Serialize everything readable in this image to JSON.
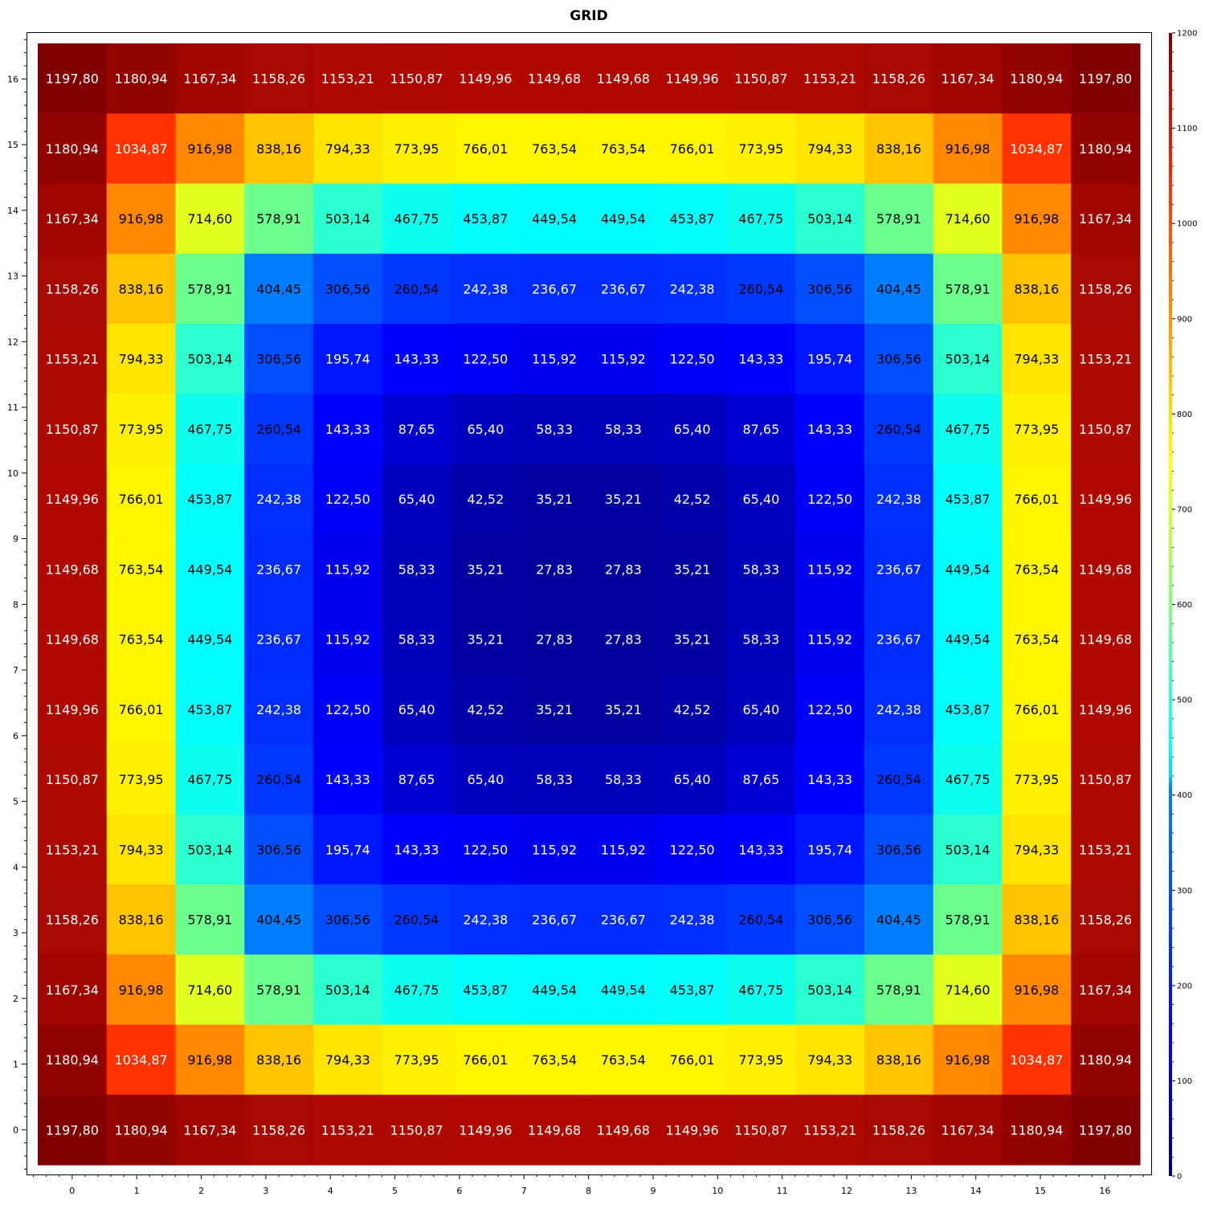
{
  "chart_data": {
    "type": "heatmap",
    "title": "GRID",
    "xlabel": "",
    "ylabel": "",
    "x": [
      0,
      1,
      2,
      3,
      4,
      5,
      6,
      7,
      8,
      9,
      10,
      11,
      12,
      13,
      14,
      15,
      16
    ],
    "y": [
      0,
      1,
      2,
      3,
      4,
      5,
      6,
      7,
      8,
      9,
      10,
      11,
      12,
      13,
      14,
      15,
      16
    ],
    "rows": [
      [
        "1197,80",
        "1180,94",
        "1167,34",
        "1158,26",
        "1153,21",
        "1150,87",
        "1149,96",
        "1149,68",
        "1149,68",
        "1149,96",
        "1150,87",
        "1153,21",
        "1158,26",
        "1167,34",
        "1180,94",
        "1197,80"
      ],
      [
        "1180,94",
        "1034,87",
        "916,98",
        "838,16",
        "794,33",
        "773,95",
        "766,01",
        "763,54",
        "763,54",
        "766,01",
        "773,95",
        "794,33",
        "838,16",
        "916,98",
        "1034,87",
        "1180,94"
      ],
      [
        "1167,34",
        "916,98",
        "714,60",
        "578,91",
        "503,14",
        "467,75",
        "453,87",
        "449,54",
        "449,54",
        "453,87",
        "467,75",
        "503,14",
        "578,91",
        "714,60",
        "916,98",
        "1167,34"
      ],
      [
        "1158,26",
        "838,16",
        "578,91",
        "404,45",
        "306,56",
        "260,54",
        "242,38",
        "236,67",
        "236,67",
        "242,38",
        "260,54",
        "306,56",
        "404,45",
        "578,91",
        "838,16",
        "1158,26"
      ],
      [
        "1153,21",
        "794,33",
        "503,14",
        "306,56",
        "195,74",
        "143,33",
        "122,50",
        "115,92",
        "115,92",
        "122,50",
        "143,33",
        "195,74",
        "306,56",
        "503,14",
        "794,33",
        "1153,21"
      ],
      [
        "1150,87",
        "773,95",
        "467,75",
        "260,54",
        "143,33",
        "87,65",
        "65,40",
        "58,33",
        "58,33",
        "65,40",
        "87,65",
        "143,33",
        "260,54",
        "467,75",
        "773,95",
        "1150,87"
      ],
      [
        "1149,96",
        "766,01",
        "453,87",
        "242,38",
        "122,50",
        "65,40",
        "42,52",
        "35,21",
        "35,21",
        "42,52",
        "65,40",
        "122,50",
        "242,38",
        "453,87",
        "766,01",
        "1149,96"
      ],
      [
        "1149,68",
        "763,54",
        "449,54",
        "236,67",
        "115,92",
        "58,33",
        "35,21",
        "27,83",
        "27,83",
        "35,21",
        "58,33",
        "115,92",
        "236,67",
        "449,54",
        "763,54",
        "1149,68"
      ],
      [
        "1149,68",
        "763,54",
        "449,54",
        "236,67",
        "115,92",
        "58,33",
        "35,21",
        "27,83",
        "27,83",
        "35,21",
        "58,33",
        "115,92",
        "236,67",
        "449,54",
        "763,54",
        "1149,68"
      ],
      [
        "1149,96",
        "766,01",
        "453,87",
        "242,38",
        "122,50",
        "65,40",
        "42,52",
        "35,21",
        "35,21",
        "42,52",
        "65,40",
        "122,50",
        "242,38",
        "453,87",
        "766,01",
        "1149,96"
      ],
      [
        "1150,87",
        "773,95",
        "467,75",
        "260,54",
        "143,33",
        "87,65",
        "65,40",
        "58,33",
        "58,33",
        "65,40",
        "87,65",
        "143,33",
        "260,54",
        "467,75",
        "773,95",
        "1150,87"
      ],
      [
        "1153,21",
        "794,33",
        "503,14",
        "306,56",
        "195,74",
        "143,33",
        "122,50",
        "115,92",
        "115,92",
        "122,50",
        "143,33",
        "195,74",
        "306,56",
        "503,14",
        "794,33",
        "1153,21"
      ],
      [
        "1158,26",
        "838,16",
        "578,91",
        "404,45",
        "306,56",
        "260,54",
        "242,38",
        "236,67",
        "236,67",
        "242,38",
        "260,54",
        "306,56",
        "404,45",
        "578,91",
        "838,16",
        "1158,26"
      ],
      [
        "1167,34",
        "916,98",
        "714,60",
        "578,91",
        "503,14",
        "467,75",
        "453,87",
        "449,54",
        "449,54",
        "453,87",
        "467,75",
        "503,14",
        "578,91",
        "714,60",
        "916,98",
        "1167,34"
      ],
      [
        "1180,94",
        "1034,87",
        "916,98",
        "838,16",
        "794,33",
        "773,95",
        "766,01",
        "763,54",
        "763,54",
        "766,01",
        "773,95",
        "794,33",
        "838,16",
        "916,98",
        "1034,87",
        "1180,94"
      ],
      [
        "1197,80",
        "1180,94",
        "1167,34",
        "1158,26",
        "1153,21",
        "1150,87",
        "1149,96",
        "1149,68",
        "1149,68",
        "1149,96",
        "1150,87",
        "1153,21",
        "1158,26",
        "1167,34",
        "1180,94",
        "1197,80"
      ]
    ],
    "colorbar": {
      "colormap": "jet",
      "range": [
        0,
        1200
      ],
      "ticks": [
        0,
        100,
        200,
        300,
        400,
        500,
        600,
        700,
        800,
        900,
        1000,
        1100,
        1200
      ]
    },
    "xlim": [
      0,
      16
    ],
    "ylim": [
      0,
      16
    ],
    "grid": false
  }
}
